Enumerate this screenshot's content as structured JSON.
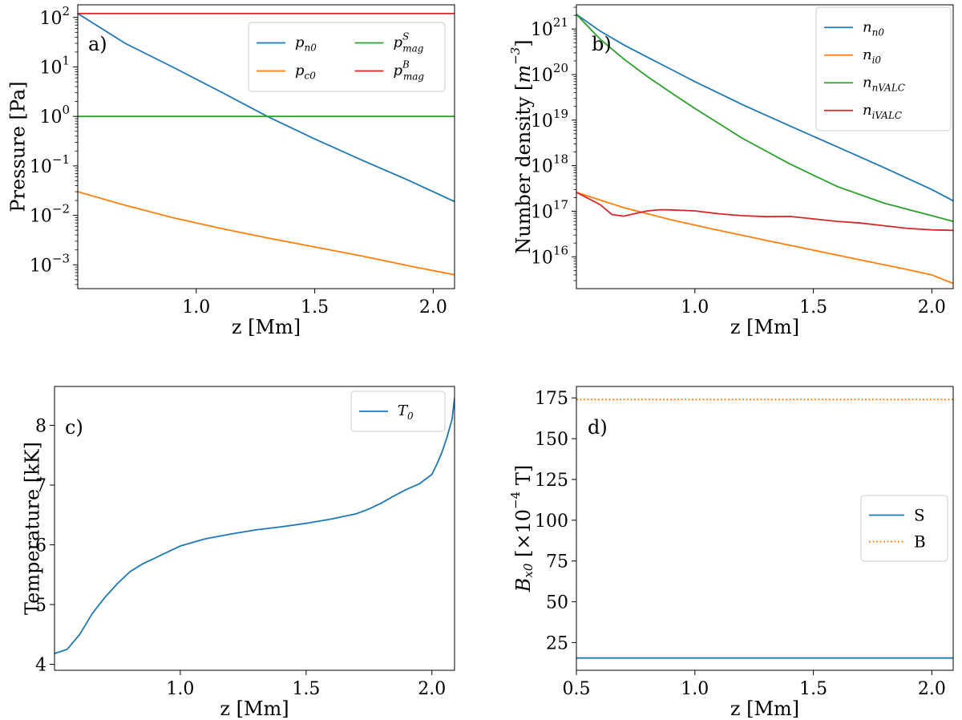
{
  "chart_data": [
    {
      "panel": "a)",
      "type": "line",
      "xlabel": "z [Mm]",
      "ylabel": "Pressure [Pa]",
      "yscale": "log",
      "xlim": [
        0.5,
        2.09
      ],
      "ylim": [
        0.00033,
        180
      ],
      "x_ticks": [
        1.0,
        1.5,
        2.0
      ],
      "x_tick_labels": [
        "1.0",
        "1.5",
        "2.0"
      ],
      "y_ticks": [
        100,
        10,
        1,
        0.1,
        0.01,
        0.001
      ],
      "y_tick_labels": [
        {
          "base": "10",
          "exp": "2"
        },
        {
          "base": "10",
          "exp": "1"
        },
        {
          "base": "10",
          "exp": "0"
        },
        {
          "base": "10",
          "exp": "−1"
        },
        {
          "base": "10",
          "exp": "−2"
        },
        {
          "base": "10",
          "exp": "−3"
        }
      ],
      "legend_position": "upper-right",
      "legend_columns": 2,
      "series": [
        {
          "name": "p",
          "sub": "n0",
          "sup": "",
          "color": "#1f77b4",
          "style": "solid",
          "x": [
            0.5,
            0.7,
            0.9,
            1.1,
            1.3,
            1.5,
            1.7,
            1.9,
            2.09
          ],
          "y": [
            120,
            30,
            10,
            3.2,
            1.0,
            0.35,
            0.13,
            0.05,
            0.019
          ]
        },
        {
          "name": "p",
          "sub": "c0",
          "sup": "",
          "color": "#ff7f0e",
          "style": "solid",
          "x": [
            0.5,
            0.7,
            0.9,
            1.1,
            1.3,
            1.5,
            1.7,
            1.9,
            2.09
          ],
          "y": [
            0.03,
            0.016,
            0.009,
            0.0055,
            0.0035,
            0.0023,
            0.0015,
            0.00095,
            0.00063
          ]
        },
        {
          "name": "p",
          "sub": "mag",
          "sup": "S",
          "color": "#2ca02c",
          "style": "solid",
          "x": [
            0.5,
            2.09
          ],
          "y": [
            1.0,
            1.0
          ]
        },
        {
          "name": "p",
          "sub": "mag",
          "sup": "B",
          "color": "#d62728",
          "style": "solid",
          "x": [
            0.5,
            2.09
          ],
          "y": [
            120,
            120
          ]
        }
      ]
    },
    {
      "panel": "b)",
      "type": "line",
      "xlabel": "z [Mm]",
      "ylabel": "Number density [m⁻³]",
      "yscale": "log",
      "xlim": [
        0.5,
        2.09
      ],
      "ylim": [
        2000000000000000.0,
        3.4e+21
      ],
      "x_ticks": [
        1.0,
        1.5,
        2.0
      ],
      "x_tick_labels": [
        "1.0",
        "1.5",
        "2.0"
      ],
      "y_ticks": [
        1e+21,
        1e+20,
        1e+19,
        1e+18,
        1e+17,
        1e+16
      ],
      "y_tick_labels": [
        {
          "base": "10",
          "exp": "21"
        },
        {
          "base": "10",
          "exp": "20"
        },
        {
          "base": "10",
          "exp": "19"
        },
        {
          "base": "10",
          "exp": "18"
        },
        {
          "base": "10",
          "exp": "17"
        },
        {
          "base": "10",
          "exp": "16"
        }
      ],
      "legend_position": "upper-right",
      "legend_columns": 1,
      "series": [
        {
          "name": "n",
          "sub": "n0",
          "sup": "",
          "color": "#1f77b4",
          "style": "solid",
          "x": [
            0.5,
            0.6,
            0.7,
            0.8,
            0.9,
            1.0,
            1.2,
            1.4,
            1.6,
            1.8,
            2.0,
            2.09
          ],
          "y": [
            2.1e+21,
            9e+20,
            4.5e+20,
            2.4e+20,
            1.3e+20,
            7e+19,
            2.2e+19,
            7.5e+18,
            2.6e+18,
            9e+17,
            3e+17,
            1.7e+17
          ]
        },
        {
          "name": "n",
          "sub": "i0",
          "sup": "",
          "color": "#ff7f0e",
          "style": "solid",
          "x": [
            0.5,
            0.7,
            0.9,
            1.1,
            1.3,
            1.5,
            1.7,
            1.9,
            2.0,
            2.09
          ],
          "y": [
            2.6e+17,
            1.2e+17,
            6.5e+16,
            3.8e+16,
            2.3e+16,
            1.4e+16,
            8500000000000000.0,
            5200000000000000.0,
            4000000000000000.0,
            2600000000000000.0
          ]
        },
        {
          "name": "n",
          "sub": "nVALC",
          "sup": "",
          "color": "#2ca02c",
          "style": "solid",
          "x": [
            0.5,
            0.6,
            0.7,
            0.8,
            0.9,
            1.0,
            1.2,
            1.4,
            1.6,
            1.8,
            2.0,
            2.09
          ],
          "y": [
            2.1e+21,
            6e+20,
            2.2e+20,
            9e+19,
            4e+19,
            1.8e+19,
            4e+18,
            1.1e+18,
            3.5e+17,
            1.5e+17,
            8e+16,
            6e+16
          ]
        },
        {
          "name": "n",
          "sub": "iVALC",
          "sup": "",
          "color": "#d62728",
          "style": "solid",
          "x": [
            0.5,
            0.6,
            0.65,
            0.7,
            0.75,
            0.8,
            0.85,
            0.9,
            1.0,
            1.1,
            1.2,
            1.3,
            1.4,
            1.5,
            1.6,
            1.7,
            1.8,
            1.9,
            2.0,
            2.09
          ],
          "y": [
            2.6e+17,
            1.4e+17,
            8.5e+16,
            7.8e+16,
            9e+16,
            1.02e+17,
            1.08e+17,
            1.07e+17,
            1.02e+17,
            8.8e+16,
            8e+16,
            7.6e+16,
            7.7e+16,
            6.8e+16,
            6e+16,
            5.5e+16,
            4.8e+16,
            4.2e+16,
            3.9e+16,
            3.8e+16
          ]
        }
      ]
    },
    {
      "panel": "c)",
      "type": "line",
      "xlabel": "z [Mm]",
      "ylabel": "Temperature [kK]",
      "yscale": "linear",
      "xlim": [
        0.5,
        2.09
      ],
      "ylim": [
        3.9,
        8.65
      ],
      "x_ticks": [
        1.0,
        1.5,
        2.0
      ],
      "x_tick_labels": [
        "1.0",
        "1.5",
        "2.0"
      ],
      "y_ticks": [
        4,
        5,
        6,
        7,
        8
      ],
      "y_tick_labels": [
        "4",
        "5",
        "6",
        "7",
        "8"
      ],
      "legend_position": "upper-right",
      "legend_columns": 1,
      "series": [
        {
          "name": "T",
          "sub": "0",
          "sup": "",
          "color": "#1f77b4",
          "style": "solid",
          "x": [
            0.5,
            0.55,
            0.6,
            0.65,
            0.7,
            0.75,
            0.8,
            0.85,
            0.9,
            0.95,
            1.0,
            1.1,
            1.2,
            1.3,
            1.4,
            1.5,
            1.6,
            1.7,
            1.75,
            1.8,
            1.85,
            1.9,
            1.95,
            2.0,
            2.02,
            2.04,
            2.06,
            2.08,
            2.09
          ],
          "y": [
            4.18,
            4.25,
            4.5,
            4.85,
            5.12,
            5.35,
            5.55,
            5.68,
            5.78,
            5.88,
            5.98,
            6.1,
            6.18,
            6.25,
            6.3,
            6.36,
            6.43,
            6.52,
            6.6,
            6.7,
            6.82,
            6.93,
            7.02,
            7.18,
            7.35,
            7.55,
            7.8,
            8.1,
            8.45
          ]
        }
      ]
    },
    {
      "panel": "d)",
      "type": "line",
      "xlabel": "z [Mm]",
      "ylabel": "B_x0 [×10⁻⁴ T]",
      "yscale": "linear",
      "xlim": [
        0.5,
        2.09
      ],
      "ylim": [
        8,
        182
      ],
      "x_ticks": [
        0.5,
        1.0,
        1.5,
        2.0
      ],
      "x_tick_labels": [
        "0.5",
        "1.0",
        "1.5",
        "2.0"
      ],
      "y_ticks": [
        25,
        50,
        75,
        100,
        125,
        150,
        175
      ],
      "y_tick_labels": [
        "25",
        "50",
        "75",
        "100",
        "125",
        "150",
        "175"
      ],
      "legend_position": "center-right",
      "legend_columns": 1,
      "series": [
        {
          "name": "S",
          "sub": "",
          "sup": "",
          "color": "#1f77b4",
          "style": "solid",
          "x": [
            0.5,
            2.09
          ],
          "y": [
            15.5,
            15.5
          ]
        },
        {
          "name": "B",
          "sub": "",
          "sup": "",
          "color": "#ff7f0e",
          "style": "dotted",
          "x": [
            0.5,
            2.09
          ],
          "y": [
            174,
            174
          ]
        }
      ]
    }
  ]
}
